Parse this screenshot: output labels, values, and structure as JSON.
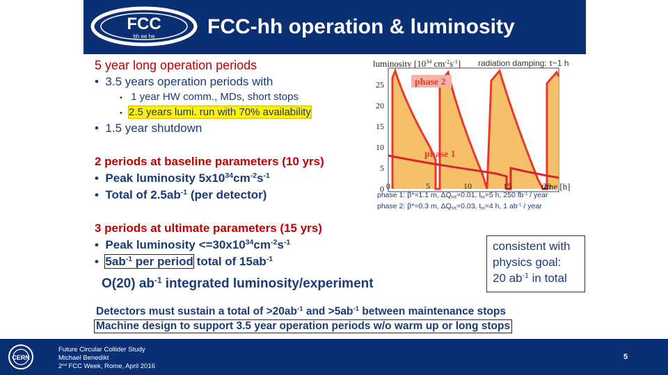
{
  "header": {
    "logo_text": "FCC",
    "logo_subtext": "hh ee he",
    "title": "FCC-hh operation & luminosity"
  },
  "block1": {
    "heading": "5 year long operation periods",
    "bullet1": "3.5 years operation periods with",
    "sub1": "1 year HW comm., MDs, short stops",
    "sub2": "2.5 years lumi. run with 70% availability",
    "bullet2": "1.5 year shutdown"
  },
  "block2": {
    "heading": "2 periods at baseline parameters (10 yrs)",
    "b1_a": "Peak luminosity 5x10",
    "b1_sup1": "34",
    "b1_b": "cm",
    "b1_sup2": "-2",
    "b1_c": "s",
    "b1_sup3": "-1",
    "b2_a": "Total of 2.5ab",
    "b2_sup": "-1",
    "b2_b": " (per detector)"
  },
  "block3": {
    "heading": "3 periods at ultimate parameters (15 yrs)",
    "b1_a": "Peak luminosity <=30x10",
    "b1_sup1": "34",
    "b1_b": "cm",
    "b1_sup2": "-2",
    "b1_c": "s",
    "b1_sup3": "-1",
    "b2_hl_a": "5ab",
    "b2_hl_sup": "-1",
    "b2_hl_b": " per period",
    "b2_rest_a": " total of 15ab",
    "b2_rest_sup": "-1"
  },
  "integrated": {
    "a": "O(20) ab",
    "sup": "-1",
    "b": " integrated luminosity/experiment"
  },
  "consistent": {
    "line1": "consistent with",
    "line2": "physics goal:",
    "line3_a": "20 ab",
    "line3_sup": "-1",
    "line3_b": " in total"
  },
  "plot": {
    "ylabel_a": "luminosity [10",
    "ylabel_sup1": "34",
    "ylabel_b": " cm",
    "ylabel_sup2": "-2",
    "ylabel_c": "s",
    "ylabel_sup3": "-1",
    "ylabel_d": "]",
    "yticks": [
      "25",
      "20",
      "15",
      "10",
      "5",
      "0"
    ],
    "xticks": [
      "0",
      "5",
      "10",
      "15",
      "20"
    ],
    "xlabel": "time [h]",
    "label_phase2": "phase 2",
    "label_phase1": "phase 1",
    "damping": "radiation damping: τ~1 h",
    "phase1_caption": "phase 1: β*=1.1 m, ΔQ",
    "phase1_sub": "tot",
    "phase1_caption_b": "=0.01, t",
    "phase1_sub2": "ta",
    "phase1_caption_c": "=5 h, 250 fb",
    "phase1_sup": "-1",
    "phase1_caption_d": " / year",
    "phase2_caption": "phase 2: β*=0.3 m, ΔQ",
    "phase2_sub": "tot",
    "phase2_caption_b": "=0.03, t",
    "phase2_sub2": "ta",
    "phase2_caption_c": "=4 h, 1 ab",
    "phase2_sup": "-1",
    "phase2_caption_d": " / year"
  },
  "bottom": {
    "line1_a": "Detectors must sustain a total of >20ab",
    "line1_sup": "-1",
    "line1_b": " and >5ab",
    "line1_sup2": "-1",
    "line1_c": " between maintenance stops",
    "line2": "Machine design to support 3.5 year operation periods w/o warm up or long stops"
  },
  "footer": {
    "line1": "Future Circular Collider Study",
    "line2": "Michael Benedikt",
    "line3_a": "2",
    "line3_sup": "nd",
    "line3_b": " FCC Week, Rome, April 2016",
    "page": "5"
  },
  "colors": {
    "header_bg": "#0b2f73",
    "heading_red": "#c00000",
    "body_blue": "#1b3a78",
    "highlight": "#fff200",
    "phase2_fill": "#f6c06a",
    "phase2_line": "#e8392a",
    "phase1_fill": "#e86a64"
  }
}
